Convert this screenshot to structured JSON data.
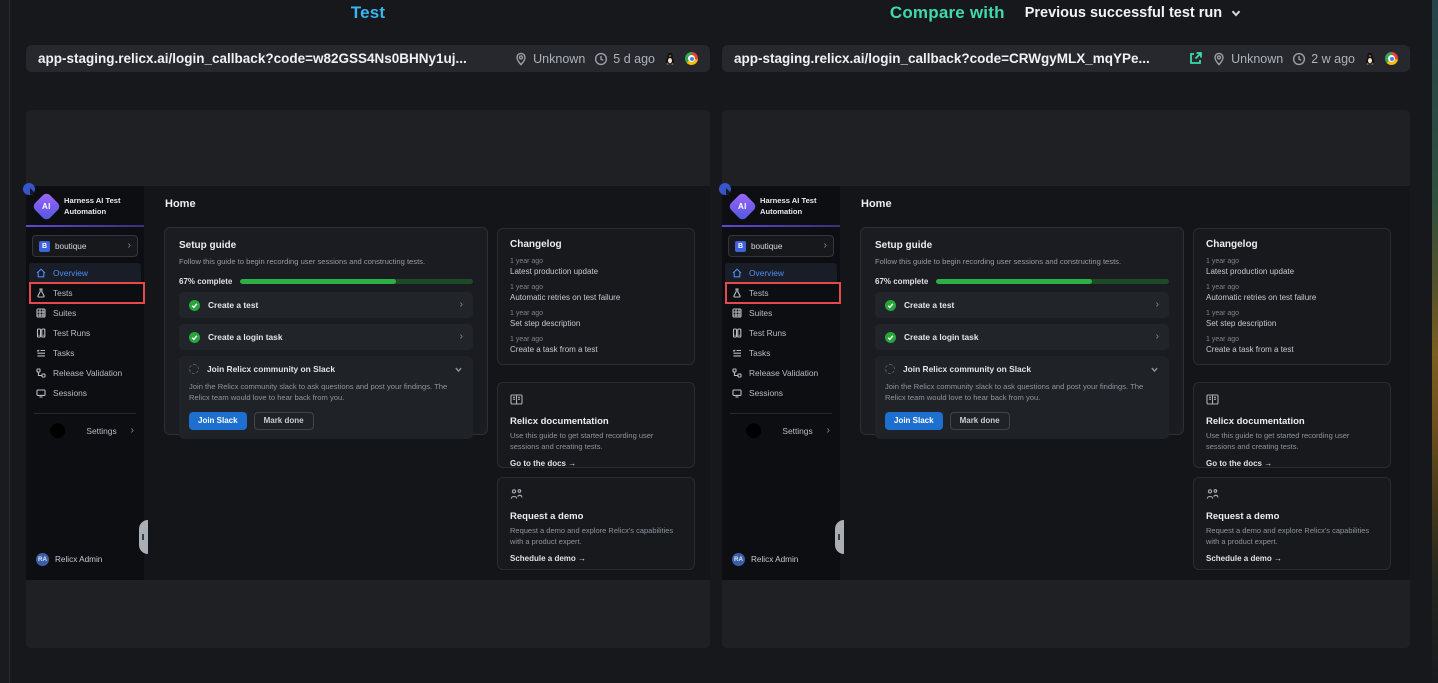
{
  "colors": {
    "accent_blue": "#38b6f0",
    "accent_teal": "#3fd9ac",
    "annotation_red": "#e5484d",
    "progress_green": "#2eae47",
    "primary_button_blue": "#1d6fd0"
  },
  "panels": [
    {
      "title": "Test",
      "url": "app-staging.relicx.ai/login_callback?code=w82GSS4Ns0BHNy1uj...",
      "location": "Unknown",
      "age": "5 d ago"
    },
    {
      "title": "Compare with",
      "dropdown_label": "Previous successful test run",
      "url": "app-staging.relicx.ai/login_callback?code=CRWgyMLX_mqYPe...",
      "location": "Unknown",
      "age": "2 w ago"
    }
  ],
  "app": {
    "brand": {
      "logo_text": "AI",
      "name_line1": "Harness AI Test",
      "name_line2": "Automation"
    },
    "project": {
      "badge": "B",
      "name": "boutique"
    },
    "sidebar": {
      "nav": [
        {
          "label": "Overview"
        },
        {
          "label": "Tests"
        },
        {
          "label": "Suites"
        },
        {
          "label": "Test Runs"
        },
        {
          "label": "Tasks"
        },
        {
          "label": "Release Validation"
        },
        {
          "label": "Sessions"
        }
      ],
      "settings_label": "Settings",
      "user": {
        "initials": "RA",
        "name": "Relicx Admin"
      }
    },
    "main": {
      "page_title": "Home",
      "setup": {
        "title": "Setup guide",
        "subtitle": "Follow this guide to begin recording user sessions and constructing tests.",
        "progress_label": "67% complete",
        "progress_pct": 67,
        "steps": [
          {
            "label": "Create a test"
          },
          {
            "label": "Create a login task"
          }
        ],
        "expanded_step": {
          "label": "Join Relicx community on Slack",
          "description": "Join the Relicx community slack to ask questions and post your findings. The Relicx team would love to hear back from you.",
          "primary_button": "Join Slack",
          "secondary_button": "Mark done"
        }
      },
      "changelog": {
        "title": "Changelog",
        "entries": [
          {
            "time": "1 year ago",
            "text": "Latest production update"
          },
          {
            "time": "1 year ago",
            "text": "Automatic retries on test failure"
          },
          {
            "time": "1 year ago",
            "text": "Set step description"
          },
          {
            "time": "1 year ago",
            "text": "Create a task from a test"
          }
        ]
      },
      "docs_card": {
        "title": "Relicx documentation",
        "description": "Use this guide to get started recording user sessions and creating tests.",
        "link": "Go to the docs →"
      },
      "demo_card": {
        "title": "Request a demo",
        "description": "Request a demo and explore Relicx's capabilities with a product expert.",
        "link": "Schedule a demo →"
      }
    }
  }
}
